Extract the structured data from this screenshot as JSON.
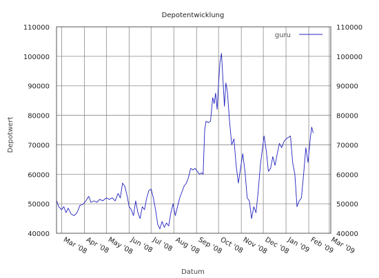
{
  "chart_data": {
    "type": "line",
    "title": "Depotentwicklung",
    "xlabel": "Datum",
    "ylabel": "Depotwert",
    "x_range": [
      "2008-02-23",
      "2009-03-03"
    ],
    "ylim": [
      40000,
      110000
    ],
    "y_ticks": [
      40000,
      50000,
      60000,
      70000,
      80000,
      90000,
      100000,
      110000
    ],
    "x_ticks": [
      {
        "date": "2008-03-01",
        "label": "Mar '08"
      },
      {
        "date": "2008-04-01",
        "label": "Apr '08"
      },
      {
        "date": "2008-05-01",
        "label": "May '08"
      },
      {
        "date": "2008-06-01",
        "label": "Jun '08"
      },
      {
        "date": "2008-07-01",
        "label": "Jul '08"
      },
      {
        "date": "2008-08-01",
        "label": "Aug '08"
      },
      {
        "date": "2008-09-01",
        "label": "Sep '08"
      },
      {
        "date": "2008-10-01",
        "label": "Oct '08"
      },
      {
        "date": "2008-11-01",
        "label": "Nov '08"
      },
      {
        "date": "2008-12-01",
        "label": "Dec '08"
      },
      {
        "date": "2009-01-01",
        "label": "Jan '09"
      },
      {
        "date": "2009-02-01",
        "label": "Feb '09"
      },
      {
        "date": "2009-03-01",
        "label": "Mar '09"
      }
    ],
    "grid": true,
    "legend_position": "top-right",
    "colors": {
      "series": "#2020c0",
      "grid": "#8a8a8a",
      "axes": "#555555"
    },
    "series": [
      {
        "name": "guru",
        "points": [
          [
            "2008-02-23",
            51200
          ],
          [
            "2008-02-26",
            49000
          ],
          [
            "2008-03-01",
            48000
          ],
          [
            "2008-03-04",
            49000
          ],
          [
            "2008-03-07",
            47000
          ],
          [
            "2008-03-10",
            48500
          ],
          [
            "2008-03-14",
            46500
          ],
          [
            "2008-03-18",
            46000
          ],
          [
            "2008-03-22",
            47000
          ],
          [
            "2008-03-26",
            49500
          ],
          [
            "2008-03-30",
            49800
          ],
          [
            "2008-04-03",
            51000
          ],
          [
            "2008-04-07",
            52500
          ],
          [
            "2008-04-10",
            50500
          ],
          [
            "2008-04-14",
            51000
          ],
          [
            "2008-04-18",
            50500
          ],
          [
            "2008-04-22",
            51500
          ],
          [
            "2008-04-26",
            51000
          ],
          [
            "2008-05-01",
            52000
          ],
          [
            "2008-05-05",
            51500
          ],
          [
            "2008-05-09",
            52000
          ],
          [
            "2008-05-13",
            51000
          ],
          [
            "2008-05-17",
            53500
          ],
          [
            "2008-05-20",
            52000
          ],
          [
            "2008-05-23",
            57000
          ],
          [
            "2008-05-26",
            56000
          ],
          [
            "2008-05-29",
            53000
          ],
          [
            "2008-06-01",
            49000
          ],
          [
            "2008-06-04",
            48000
          ],
          [
            "2008-06-07",
            46000
          ],
          [
            "2008-06-10",
            51000
          ],
          [
            "2008-06-13",
            47000
          ],
          [
            "2008-06-16",
            45000
          ],
          [
            "2008-06-19",
            49000
          ],
          [
            "2008-06-22",
            48000
          ],
          [
            "2008-06-25",
            52000
          ],
          [
            "2008-06-28",
            54500
          ],
          [
            "2008-07-01",
            55000
          ],
          [
            "2008-07-04",
            52000
          ],
          [
            "2008-07-07",
            48000
          ],
          [
            "2008-07-10",
            43000
          ],
          [
            "2008-07-13",
            41500
          ],
          [
            "2008-07-16",
            44000
          ],
          [
            "2008-07-19",
            42000
          ],
          [
            "2008-07-22",
            43500
          ],
          [
            "2008-07-25",
            42500
          ],
          [
            "2008-07-28",
            47000
          ],
          [
            "2008-07-31",
            50000
          ],
          [
            "2008-08-03",
            46000
          ],
          [
            "2008-08-06",
            49000
          ],
          [
            "2008-08-09",
            52000
          ],
          [
            "2008-08-12",
            54000
          ],
          [
            "2008-08-15",
            56000
          ],
          [
            "2008-08-18",
            57000
          ],
          [
            "2008-08-21",
            59000
          ],
          [
            "2008-08-24",
            62000
          ],
          [
            "2008-08-27",
            61500
          ],
          [
            "2008-08-30",
            62000
          ],
          [
            "2008-09-02",
            61000
          ],
          [
            "2008-09-05",
            60000
          ],
          [
            "2008-09-08",
            60500
          ],
          [
            "2008-09-10",
            60000
          ],
          [
            "2008-09-12",
            75000
          ],
          [
            "2008-09-14",
            78000
          ],
          [
            "2008-09-17",
            77500
          ],
          [
            "2008-09-20",
            78000
          ],
          [
            "2008-09-23",
            86000
          ],
          [
            "2008-09-25",
            84000
          ],
          [
            "2008-09-27",
            87500
          ],
          [
            "2008-09-29",
            82000
          ],
          [
            "2008-10-01",
            91000
          ],
          [
            "2008-10-03",
            98000
          ],
          [
            "2008-10-05",
            101000
          ],
          [
            "2008-10-07",
            92000
          ],
          [
            "2008-10-09",
            83000
          ],
          [
            "2008-10-11",
            91000
          ],
          [
            "2008-10-13",
            88000
          ],
          [
            "2008-10-16",
            78000
          ],
          [
            "2008-10-19",
            70000
          ],
          [
            "2008-10-22",
            72000
          ],
          [
            "2008-10-25",
            63000
          ],
          [
            "2008-10-28",
            57000
          ],
          [
            "2008-10-31",
            62000
          ],
          [
            "2008-11-03",
            67000
          ],
          [
            "2008-11-06",
            61000
          ],
          [
            "2008-11-09",
            52000
          ],
          [
            "2008-11-12",
            51000
          ],
          [
            "2008-11-15",
            45000
          ],
          [
            "2008-11-18",
            49000
          ],
          [
            "2008-11-21",
            47000
          ],
          [
            "2008-11-24",
            54000
          ],
          [
            "2008-11-27",
            63000
          ],
          [
            "2008-11-30",
            69000
          ],
          [
            "2008-12-02",
            73000
          ],
          [
            "2008-12-05",
            68000
          ],
          [
            "2008-12-08",
            61000
          ],
          [
            "2008-12-11",
            62000
          ],
          [
            "2008-12-14",
            66000
          ],
          [
            "2008-12-17",
            63000
          ],
          [
            "2008-12-20",
            67000
          ],
          [
            "2008-12-23",
            70500
          ],
          [
            "2008-12-26",
            69000
          ],
          [
            "2008-12-29",
            71000
          ],
          [
            "2009-01-01",
            72000
          ],
          [
            "2009-01-04",
            72500
          ],
          [
            "2009-01-07",
            73000
          ],
          [
            "2009-01-10",
            64000
          ],
          [
            "2009-01-13",
            60000
          ],
          [
            "2009-01-16",
            49000
          ],
          [
            "2009-01-19",
            51000
          ],
          [
            "2009-01-22",
            52000
          ],
          [
            "2009-01-25",
            60000
          ],
          [
            "2009-01-28",
            69000
          ],
          [
            "2009-01-31",
            64000
          ],
          [
            "2009-02-03",
            72000
          ],
          [
            "2009-02-05",
            76000
          ],
          [
            "2009-02-07",
            74000
          ]
        ]
      }
    ]
  }
}
